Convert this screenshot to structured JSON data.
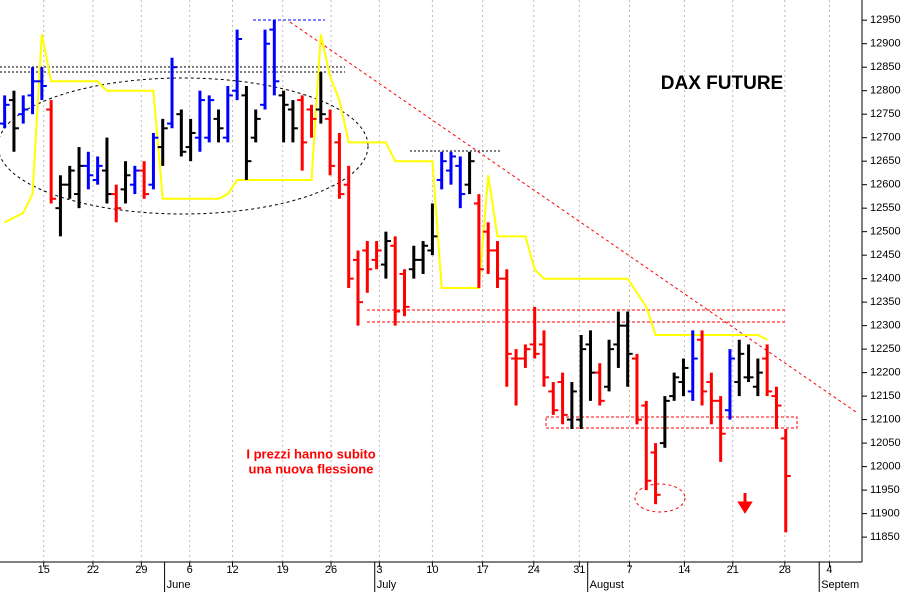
{
  "chart_data": {
    "type": "ohlc",
    "title": "DAX FUTURE",
    "annotation": [
      "I prezzi hanno subito",
      "una nuova flessione"
    ],
    "x": [
      0,
      1,
      2,
      3,
      4,
      5,
      6,
      7,
      8,
      9,
      10,
      11,
      12,
      13,
      14,
      15,
      16,
      17,
      18,
      19,
      20,
      21,
      22,
      23,
      24,
      25,
      26,
      27,
      28,
      29,
      30,
      31,
      32,
      33,
      34,
      35,
      36,
      37,
      38,
      39,
      40,
      41,
      42,
      43,
      44,
      45,
      46,
      47,
      48,
      49,
      50,
      51,
      52,
      53,
      54,
      55,
      56,
      57,
      58,
      59,
      60,
      61,
      62,
      63,
      64,
      65,
      66,
      67,
      68,
      69,
      70,
      71,
      72,
      73,
      74,
      75,
      76,
      77,
      78,
      79,
      80,
      81,
      82,
      83,
      84
    ],
    "open": [
      12730,
      12780,
      12750,
      12790,
      12820,
      12760,
      12550,
      12600,
      12580,
      12640,
      12610,
      12630,
      12580,
      12590,
      12600,
      12630,
      12600,
      12680,
      12730,
      12750,
      12680,
      12700,
      12700,
      12740,
      12700,
      12800,
      12790,
      12700,
      12770,
      12930,
      12790,
      12760,
      12780,
      12760,
      12760,
      12740,
      12690,
      12600,
      12440,
      12460,
      12440,
      12430,
      12470,
      12410,
      12420,
      12440,
      12460,
      12610,
      12630,
      12640,
      12600,
      12560,
      12500,
      12460,
      12400,
      12230,
      12230,
      12260,
      12260,
      12160,
      12180,
      12100,
      12100,
      12260,
      12200,
      12170,
      12260,
      12300,
      12230,
      12130,
      12030,
      12050,
      12150,
      12180,
      12160,
      12270,
      12180,
      12140,
      12120,
      12180,
      12190,
      12170,
      12230,
      12150,
      12060
    ],
    "high": [
      12790,
      12800,
      12790,
      12850,
      12850,
      12780,
      12620,
      12640,
      12680,
      12670,
      12660,
      12700,
      12600,
      12650,
      12640,
      12650,
      12710,
      12740,
      12870,
      12760,
      12740,
      12800,
      12790,
      12760,
      12810,
      12930,
      12810,
      12760,
      12930,
      12950,
      12800,
      12780,
      12790,
      12770,
      12840,
      12760,
      12710,
      12640,
      12460,
      12480,
      12480,
      12500,
      12490,
      12420,
      12470,
      12480,
      12560,
      12670,
      12670,
      12660,
      12670,
      12580,
      12520,
      12480,
      12420,
      12250,
      12260,
      12340,
      12290,
      12180,
      12200,
      12180,
      12280,
      12290,
      12220,
      12270,
      12330,
      12330,
      12240,
      12140,
      12050,
      12150,
      12200,
      12230,
      12290,
      12290,
      12200,
      12150,
      12250,
      12270,
      12260,
      12230,
      12260,
      12170,
      12080
    ],
    "low": [
      12720,
      12670,
      12730,
      12750,
      12780,
      12560,
      12490,
      12570,
      12550,
      12590,
      12600,
      12560,
      12520,
      12560,
      12580,
      12570,
      12590,
      12640,
      12720,
      12660,
      12650,
      12670,
      12690,
      12690,
      12690,
      12780,
      12610,
      12690,
      12760,
      12790,
      12690,
      12690,
      12630,
      12700,
      12730,
      12620,
      12570,
      12380,
      12300,
      12370,
      12420,
      12400,
      12300,
      12320,
      12400,
      12410,
      12450,
      12590,
      12600,
      12550,
      12580,
      12380,
      12410,
      12380,
      12170,
      12130,
      12210,
      12230,
      12170,
      12110,
      12090,
      12080,
      12080,
      12140,
      12130,
      12160,
      12210,
      12170,
      12090,
      11950,
      11920,
      12040,
      12140,
      12150,
      12140,
      12130,
      12090,
      12010,
      12100,
      12150,
      12180,
      12150,
      12150,
      12080,
      11860
    ],
    "close": [
      12770,
      12720,
      12760,
      12820,
      12810,
      12570,
      12600,
      12630,
      12640,
      12620,
      12640,
      12580,
      12550,
      12620,
      12630,
      12580,
      12700,
      12720,
      12850,
      12670,
      12710,
      12780,
      12780,
      12720,
      12790,
      12910,
      12650,
      12740,
      12900,
      12820,
      12770,
      12720,
      12690,
      12740,
      12750,
      12640,
      12580,
      12400,
      12350,
      12420,
      12460,
      12480,
      12330,
      12340,
      12440,
      12470,
      12490,
      12650,
      12660,
      12580,
      12650,
      12420,
      12460,
      12400,
      12240,
      12230,
      12250,
      12240,
      12190,
      12120,
      12110,
      12160,
      12250,
      12200,
      12140,
      12250,
      12300,
      12240,
      12100,
      11970,
      11940,
      12140,
      12190,
      12210,
      12230,
      12160,
      12140,
      12070,
      12230,
      12240,
      12190,
      12200,
      12160,
      12130,
      11980
    ],
    "colors": [
      "#0000ff",
      "#000000",
      "#0000ff",
      "#0000ff",
      "#0000ff",
      "#ff0000",
      "#000000",
      "#000000",
      "#000000",
      "#0000ff",
      "#0000ff",
      "#000000",
      "#ff0000",
      "#000000",
      "#0000ff",
      "#ff0000",
      "#0000ff",
      "#000000",
      "#0000ff",
      "#000000",
      "#000000",
      "#0000ff",
      "#0000ff",
      "#000000",
      "#0000ff",
      "#0000ff",
      "#000000",
      "#000000",
      "#0000ff",
      "#0000ff",
      "#000000",
      "#000000",
      "#ff0000",
      "#ff0000",
      "#000000",
      "#ff0000",
      "#ff0000",
      "#ff0000",
      "#ff0000",
      "#ff0000",
      "#ff0000",
      "#000000",
      "#ff0000",
      "#ff0000",
      "#000000",
      "#000000",
      "#000000",
      "#0000ff",
      "#0000ff",
      "#0000ff",
      "#000000",
      "#ff0000",
      "#ff0000",
      "#ff0000",
      "#ff0000",
      "#ff0000",
      "#ff0000",
      "#ff0000",
      "#ff0000",
      "#ff0000",
      "#ff0000",
      "#000000",
      "#000000",
      "#000000",
      "#ff0000",
      "#000000",
      "#000000",
      "#000000",
      "#ff0000",
      "#ff0000",
      "#ff0000",
      "#000000",
      "#000000",
      "#000000",
      "#0000ff",
      "#ff0000",
      "#ff0000",
      "#ff0000",
      "#0000ff",
      "#000000",
      "#000000",
      "#000000",
      "#ff0000",
      "#ff0000",
      "#ff0000"
    ],
    "overlay": {
      "color": "#ffff00",
      "values": [
        12520,
        12530,
        12540,
        12580,
        12920,
        12820,
        12820,
        12820,
        12820,
        12820,
        12820,
        12800,
        12800,
        12800,
        12800,
        12800,
        12800,
        12570,
        12570,
        12570,
        12570,
        12570,
        12570,
        12570,
        12580,
        12610,
        12610,
        12610,
        12610,
        12610,
        12610,
        12610,
        12610,
        12610,
        12920,
        12830,
        12780,
        12690,
        12690,
        12690,
        12690,
        12690,
        12650,
        12650,
        12650,
        12650,
        12650,
        12380,
        12380,
        12380,
        12380,
        12380,
        12620,
        12490,
        12490,
        12490,
        12490,
        12420,
        12400,
        12400,
        12400,
        12400,
        12400,
        12400,
        12400,
        12400,
        12400,
        12400,
        12370,
        12340,
        12280,
        12280,
        12280,
        12280,
        12280,
        12280,
        12280,
        12280,
        12280,
        12280,
        12280,
        12280,
        12270,
        null,
        null
      ]
    },
    "xlim": [
      -0.5,
      92.2
    ],
    "xticks": [
      {
        "value": 4.2,
        "label": "15"
      },
      {
        "value": 9.5,
        "label": "22"
      },
      {
        "value": 14.7,
        "label": "29"
      },
      {
        "value": 19.9,
        "label": "6"
      },
      {
        "value": 24.5,
        "label": "12"
      },
      {
        "value": 29.9,
        "label": "19"
      },
      {
        "value": 35.1,
        "label": "26"
      },
      {
        "value": 40.3,
        "label": "3"
      },
      {
        "value": 46,
        "label": "10"
      },
      {
        "value": 51.4,
        "label": "17"
      },
      {
        "value": 56.9,
        "label": "24"
      },
      {
        "value": 61.8,
        "label": "31"
      },
      {
        "value": 67.2,
        "label": "7"
      },
      {
        "value": 73.1,
        "label": "14"
      },
      {
        "value": 78.3,
        "label": "21"
      },
      {
        "value": 83.9,
        "label": "28"
      },
      {
        "value": 88.7,
        "label": "4"
      }
    ],
    "month_ticks": [
      {
        "value": 17.2,
        "label": "June"
      },
      {
        "value": 39.8,
        "label": "July"
      },
      {
        "value": 62.7,
        "label": "August"
      },
      {
        "value": 87.6,
        "label": "Septem"
      }
    ],
    "ylim": [
      11797,
      12993
    ],
    "yticks": [
      11850,
      11900,
      11950,
      12000,
      12050,
      12100,
      12150,
      12200,
      12250,
      12300,
      12350,
      12400,
      12450,
      12500,
      12550,
      12600,
      12650,
      12700,
      12750,
      12800,
      12850,
      12900,
      12950
    ],
    "grid": "x"
  }
}
